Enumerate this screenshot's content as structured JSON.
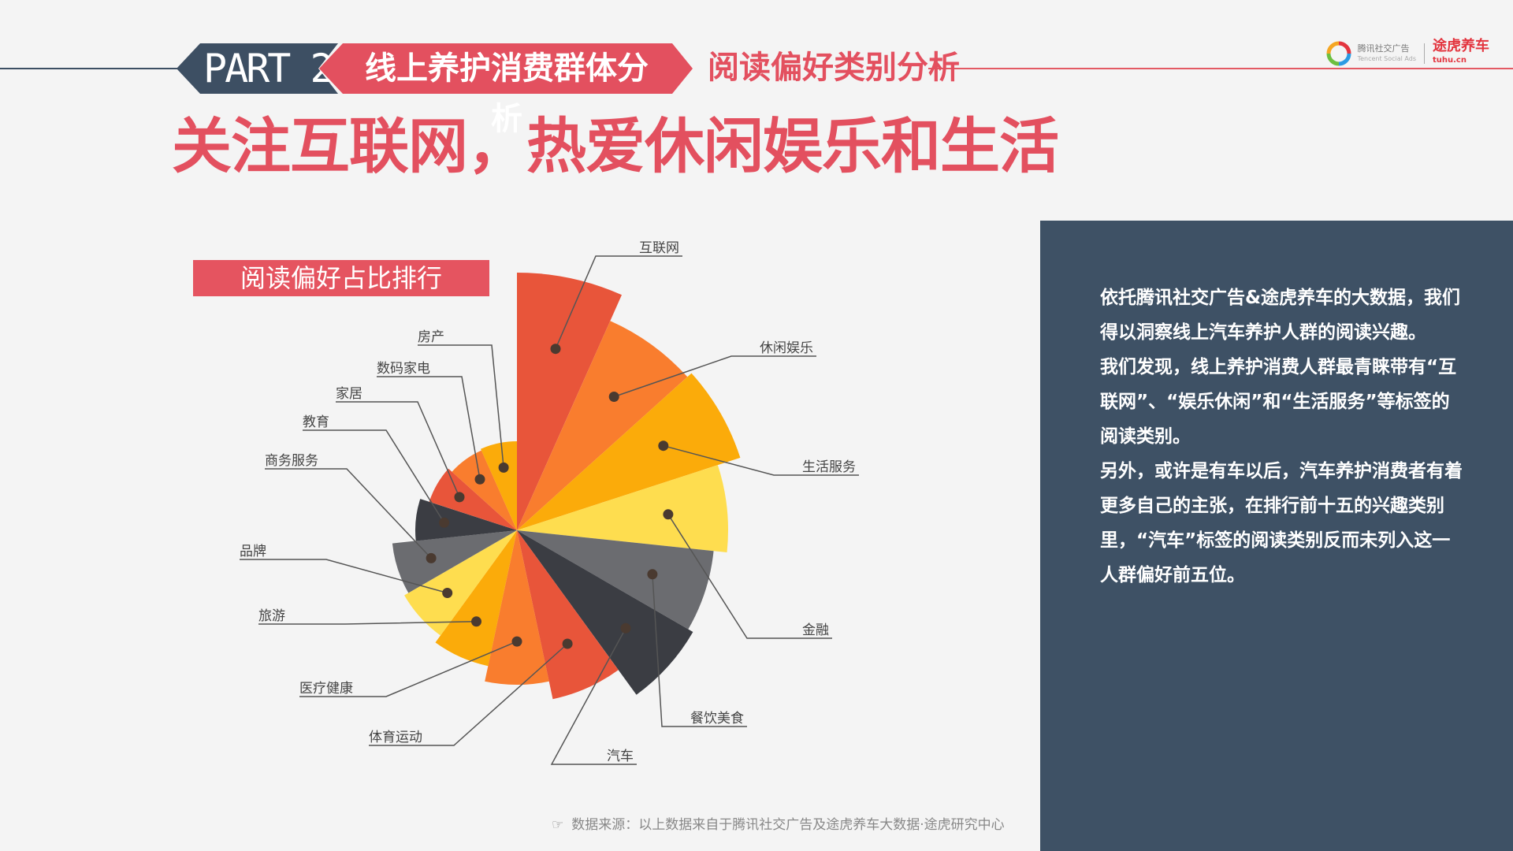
{
  "header": {
    "part_label": "PART 2",
    "section_title": "线上养护消费群体分析",
    "subsection_title": "阅读偏好类别分析"
  },
  "logo": {
    "tencent_text": "腾讯社交广告",
    "tencent_sub": "Tencent Social Ads",
    "tuhu_text": "途虎养车",
    "tuhu_sub": "tuhu.cn"
  },
  "main_title": "关注互联网，热爱休闲娱乐和生活",
  "chart_badge": "阅读偏好占比排行",
  "side_panel": {
    "paragraphs": [
      "依托腾讯社交广告&途虎养车的大数据，我们得以洞察线上汽车养护人群的阅读兴趣。",
      "我们发现，线上养护消费人群最青睐带有“互联网”、“娱乐休闲”和“生活服务”等标签的阅读类别。",
      "另外，或许是有车以后，汽车养护消费者有着更多自己的主张，在排行前十五的兴趣类别里，“汽车”标签的阅读类别反而未列入这一人群偏好前五位。"
    ]
  },
  "source": {
    "text": "数据来源：以上数据来自于腾讯社交广告及途虎养车大数据·途虎研究中心"
  },
  "colors": {
    "accent_red": "#e3505f",
    "panel_bg": "#3e5165",
    "slate": "#3d4f63"
  },
  "chart_data": {
    "type": "pie",
    "variant": "polar-area",
    "title": "阅读偏好占比排行",
    "categories": [
      "互联网",
      "休闲娱乐",
      "生活服务",
      "金融",
      "餐饮美食",
      "汽车",
      "体育运动",
      "医疗健康",
      "旅游",
      "品牌",
      "商务服务",
      "教育",
      "家居",
      "数码家电",
      "房产"
    ],
    "values": [
      327,
      291,
      298,
      268,
      251,
      258,
      219,
      196,
      176,
      165,
      159,
      129,
      117,
      111,
      113
    ],
    "colors": [
      "#e8553a",
      "#f97d2e",
      "#fbab0a",
      "#fedd4f",
      "#6b6c70",
      "#3b3d43",
      "#e8553a",
      "#f97d2e",
      "#fbab0a",
      "#fedd4f",
      "#6b6c70",
      "#3b3d43",
      "#e8553a",
      "#f97d2e",
      "#fbab0a"
    ]
  }
}
